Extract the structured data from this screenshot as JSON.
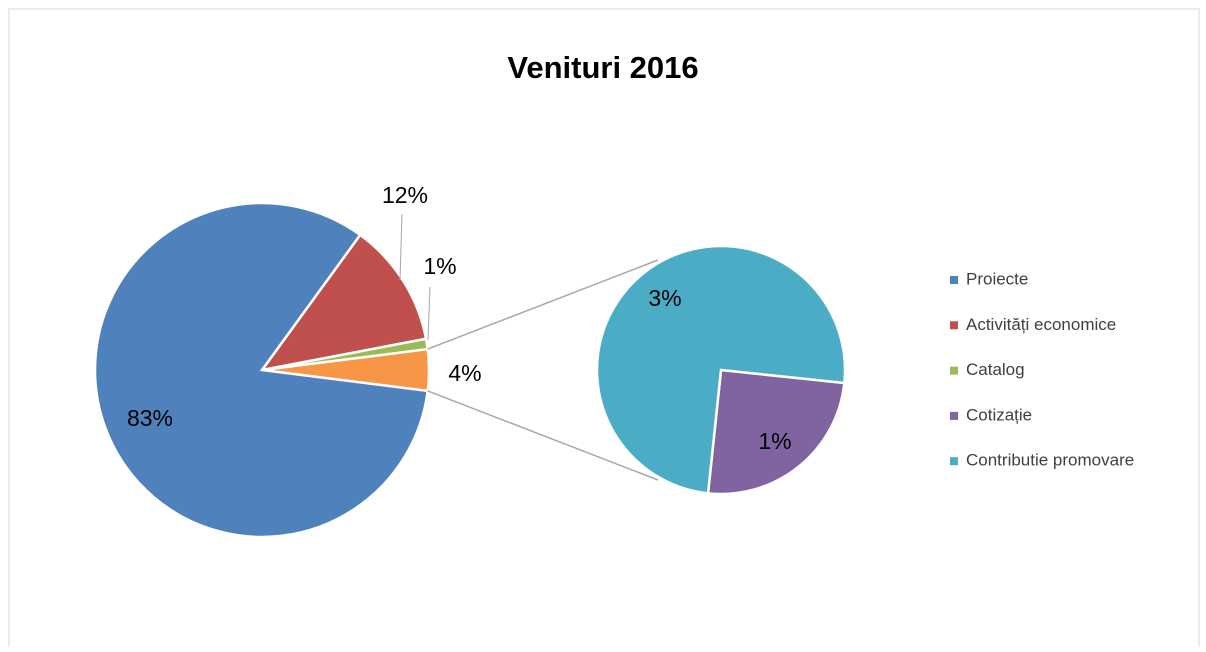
{
  "chart_data": {
    "type": "pie-of-pie",
    "title": "Venituri 2016",
    "categories": [
      "Proiecte",
      "Activități economice",
      "Catalog",
      "Cotizație",
      "Contributie promovare"
    ],
    "values": [
      83,
      12,
      1,
      1,
      3
    ],
    "value_labels": [
      "83%",
      "12%",
      "1%",
      "1%",
      "3%"
    ],
    "colors": [
      "#4f81bd",
      "#c0504d",
      "#9bbb59",
      "#8064a2",
      "#4bacc6"
    ],
    "other": {
      "value": 4,
      "value_label": "4%",
      "color": "#f79646"
    },
    "second_pie_count": 2,
    "legend": "right"
  }
}
